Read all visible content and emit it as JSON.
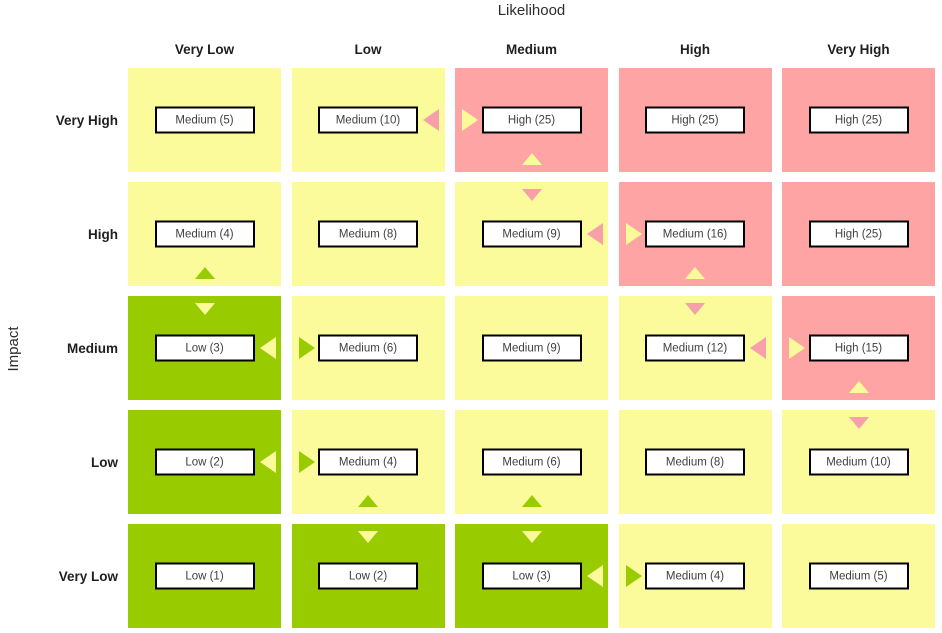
{
  "chart_data": {
    "type": "heatmap",
    "x_axis": {
      "label": "Likelihood",
      "categories": [
        "Very Low",
        "Low",
        "Medium",
        "High",
        "Very High"
      ]
    },
    "y_axis": {
      "label": "Impact",
      "categories": [
        "Very High",
        "High",
        "Medium",
        "Low",
        "Very Low"
      ]
    },
    "palette": {
      "cell": {
        "green": "#99CC00",
        "yellow": "#FBFB9B",
        "pink": "#FFA4A4"
      },
      "arrow": {
        "green": "#99CC00",
        "yellow": "#FAFA9A",
        "pink": "#F7A0A9"
      }
    },
    "rows": [
      {
        "impact": "Very High",
        "cells": [
          {
            "likelihood": "Very Low",
            "bg": "yellow",
            "rating": "Medium",
            "score": 5,
            "label": "Medium (5)",
            "arrows": []
          },
          {
            "likelihood": "Low",
            "bg": "yellow",
            "rating": "Medium",
            "score": 10,
            "label": "Medium (10)",
            "arrows": [
              {
                "dir": "left",
                "color": "pink"
              }
            ]
          },
          {
            "likelihood": "Medium",
            "bg": "pink",
            "rating": "High",
            "score": 25,
            "label": "High (25)",
            "arrows": [
              {
                "dir": "right",
                "color": "yellow"
              },
              {
                "dir": "up",
                "color": "yellow"
              }
            ]
          },
          {
            "likelihood": "High",
            "bg": "pink",
            "rating": "High",
            "score": 25,
            "label": "High (25)",
            "arrows": []
          },
          {
            "likelihood": "Very High",
            "bg": "pink",
            "rating": "High",
            "score": 25,
            "label": "High (25)",
            "arrows": []
          }
        ]
      },
      {
        "impact": "High",
        "cells": [
          {
            "likelihood": "Very Low",
            "bg": "yellow",
            "rating": "Medium",
            "score": 4,
            "label": "Medium (4)",
            "arrows": [
              {
                "dir": "up",
                "color": "green"
              }
            ]
          },
          {
            "likelihood": "Low",
            "bg": "yellow",
            "rating": "Medium",
            "score": 8,
            "label": "Medium (8)",
            "arrows": []
          },
          {
            "likelihood": "Medium",
            "bg": "yellow",
            "rating": "Medium",
            "score": 9,
            "label": "Medium (9)",
            "arrows": [
              {
                "dir": "down",
                "color": "pink"
              },
              {
                "dir": "left",
                "color": "pink"
              }
            ]
          },
          {
            "likelihood": "High",
            "bg": "pink",
            "rating": "Medium",
            "score": 16,
            "label": "Medium (16)",
            "arrows": [
              {
                "dir": "right",
                "color": "yellow"
              },
              {
                "dir": "up",
                "color": "yellow"
              }
            ]
          },
          {
            "likelihood": "Very High",
            "bg": "pink",
            "rating": "High",
            "score": 25,
            "label": "High (25)",
            "arrows": []
          }
        ]
      },
      {
        "impact": "Medium",
        "cells": [
          {
            "likelihood": "Very Low",
            "bg": "green",
            "rating": "Low",
            "score": 3,
            "label": "Low (3)",
            "arrows": [
              {
                "dir": "down",
                "color": "yellow"
              },
              {
                "dir": "left",
                "color": "yellow"
              }
            ]
          },
          {
            "likelihood": "Low",
            "bg": "yellow",
            "rating": "Medium",
            "score": 6,
            "label": "Medium (6)",
            "arrows": [
              {
                "dir": "right",
                "color": "green"
              }
            ]
          },
          {
            "likelihood": "Medium",
            "bg": "yellow",
            "rating": "Medium",
            "score": 9,
            "label": "Medium (9)",
            "arrows": []
          },
          {
            "likelihood": "High",
            "bg": "yellow",
            "rating": "Medium",
            "score": 12,
            "label": "Medium (12)",
            "arrows": [
              {
                "dir": "down",
                "color": "pink"
              },
              {
                "dir": "left",
                "color": "pink"
              }
            ]
          },
          {
            "likelihood": "Very High",
            "bg": "pink",
            "rating": "High",
            "score": 15,
            "label": "High (15)",
            "arrows": [
              {
                "dir": "right",
                "color": "yellow"
              },
              {
                "dir": "up",
                "color": "yellow"
              }
            ]
          }
        ]
      },
      {
        "impact": "Low",
        "cells": [
          {
            "likelihood": "Very Low",
            "bg": "green",
            "rating": "Low",
            "score": 2,
            "label": "Low (2)",
            "arrows": [
              {
                "dir": "left",
                "color": "yellow"
              }
            ]
          },
          {
            "likelihood": "Low",
            "bg": "yellow",
            "rating": "Medium",
            "score": 4,
            "label": "Medium (4)",
            "arrows": [
              {
                "dir": "right",
                "color": "green"
              },
              {
                "dir": "up",
                "color": "green"
              }
            ]
          },
          {
            "likelihood": "Medium",
            "bg": "yellow",
            "rating": "Medium",
            "score": 6,
            "label": "Medium (6)",
            "arrows": [
              {
                "dir": "up",
                "color": "green"
              }
            ]
          },
          {
            "likelihood": "High",
            "bg": "yellow",
            "rating": "Medium",
            "score": 8,
            "label": "Medium (8)",
            "arrows": []
          },
          {
            "likelihood": "Very High",
            "bg": "yellow",
            "rating": "Medium",
            "score": 10,
            "label": "Medium (10)",
            "arrows": [
              {
                "dir": "down",
                "color": "pink"
              }
            ]
          }
        ]
      },
      {
        "impact": "Very Low",
        "cells": [
          {
            "likelihood": "Very Low",
            "bg": "green",
            "rating": "Low",
            "score": 1,
            "label": "Low (1)",
            "arrows": []
          },
          {
            "likelihood": "Low",
            "bg": "green",
            "rating": "Low",
            "score": 2,
            "label": "Low (2)",
            "arrows": [
              {
                "dir": "down",
                "color": "yellow"
              }
            ]
          },
          {
            "likelihood": "Medium",
            "bg": "green",
            "rating": "Low",
            "score": 3,
            "label": "Low (3)",
            "arrows": [
              {
                "dir": "down",
                "color": "yellow"
              },
              {
                "dir": "left",
                "color": "yellow"
              }
            ]
          },
          {
            "likelihood": "High",
            "bg": "yellow",
            "rating": "Medium",
            "score": 4,
            "label": "Medium (4)",
            "arrows": [
              {
                "dir": "right",
                "color": "green"
              }
            ]
          },
          {
            "likelihood": "Very High",
            "bg": "yellow",
            "rating": "Medium",
            "score": 5,
            "label": "Medium (5)",
            "arrows": []
          }
        ]
      }
    ]
  }
}
